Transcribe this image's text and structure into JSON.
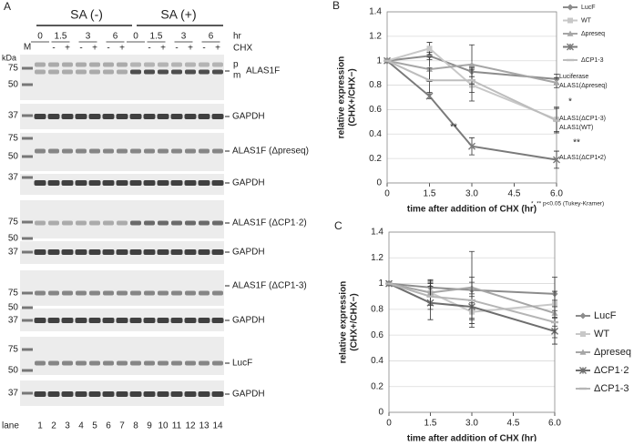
{
  "panel_a": {
    "label": "A",
    "treatments": [
      "SA (-)",
      "SA (+)"
    ],
    "time_label": "hr",
    "chx_label": "CHX",
    "times": [
      "0",
      "1.5",
      "3",
      "6",
      "0",
      "1.5",
      "3",
      "6"
    ],
    "chx": [
      "-",
      "+",
      "-",
      "+",
      "-",
      "+",
      "-",
      "+",
      "-",
      "+",
      "-",
      "+"
    ],
    "marker_lane": "M",
    "kda": "kDa",
    "blots": [
      {
        "sizes": [
          "75",
          "50",
          "37"
        ],
        "target": "ALAS1F",
        "control": "GAPDH",
        "precursor": "p",
        "mature": "m"
      },
      {
        "sizes": [
          "75",
          "50",
          "37"
        ],
        "target": "ALAS1F (Δpreseq)",
        "control": "GAPDH"
      },
      {
        "sizes": [
          "75",
          "50",
          "37"
        ],
        "target": "ALAS1F (ΔCP1·2)",
        "control": "GAPDH"
      },
      {
        "sizes": [
          "75",
          "50",
          "37"
        ],
        "target": "ALAS1F (ΔCP1-3)",
        "control": "GAPDH"
      },
      {
        "sizes": [
          "75",
          "50",
          "37"
        ],
        "target": "LucF",
        "control": "GAPDH"
      }
    ],
    "lane_label": "lane",
    "lanes": [
      "1",
      "2",
      "3",
      "4",
      "5",
      "6",
      "7",
      "8",
      "9",
      "10",
      "11",
      "12",
      "13",
      "14"
    ]
  },
  "chart_data": [
    {
      "type": "line",
      "panel_label": "B",
      "xlabel": "time after addition of CHX (hr)",
      "ylabel": [
        "relative expression",
        "(CHX+/CHX−)"
      ],
      "x": [
        0,
        1.5,
        3,
        6
      ],
      "xlim": [
        0,
        6
      ],
      "xticks": [
        0,
        1.5,
        {
          "value": 3,
          "label": "3.0"
        },
        4.5,
        {
          "value": 6,
          "label": "6.0"
        }
      ],
      "ylim": [
        0,
        1.4
      ],
      "yticks": [
        0,
        0.2,
        0.4,
        0.6,
        0.8,
        1,
        1.2,
        1.4
      ],
      "grid": true,
      "legend": "upper right",
      "series": [
        {
          "name": "LucF",
          "color": "#8c8c8c",
          "marker": "diamond",
          "values": [
            1,
            1.04,
            0.91,
            0.85
          ],
          "errors": [
            0,
            0.03,
            0.04,
            0.04
          ]
        },
        {
          "name": "WT",
          "color": "#c8c8c8",
          "marker": "square",
          "values": [
            1,
            1.1,
            0.8,
            0.52
          ],
          "errors": [
            0,
            0.05,
            0.13,
            0.1
          ]
        },
        {
          "name": "Δpreseq",
          "color": "#a6a6a6",
          "marker": "triangle",
          "values": [
            1,
            0.93,
            0.97,
            0.82
          ],
          "errors": [
            0,
            0.1,
            0.16,
            0.04
          ]
        },
        {
          "name": null,
          "color": "#7a7a7a",
          "marker": "x",
          "values": [
            1,
            0.71,
            0.3,
            0.19
          ],
          "errors": [
            0,
            0.02,
            0.07,
            0.07
          ]
        },
        {
          "name": "ΔCP1-3",
          "color": "#bdbdbd",
          "marker": "dash",
          "values": [
            1,
            0.84,
            0.84,
            0.51
          ],
          "errors": [
            0,
            0.1,
            0.1,
            0.1
          ]
        }
      ],
      "annotations": [
        "Luciferase",
        "ALAS1(Δpreseq)",
        "*",
        "ALAS1(ΔCP1-3)",
        "ALAS1(WT)",
        "**",
        "**",
        "ALAS1(ΔCP1•2)"
      ],
      "footnote": "*, ** p<0.05 (Tukey-Kramer)"
    },
    {
      "type": "line",
      "panel_label": "C",
      "xlabel": "time after addition of CHX (hr)",
      "ylabel": [
        "relative expression",
        "(CHX+/CHX−)"
      ],
      "x": [
        0,
        1.5,
        3,
        6
      ],
      "xlim": [
        0,
        6
      ],
      "xticks": [
        0,
        1.5,
        {
          "value": 3,
          "label": "3.0"
        },
        4.5,
        {
          "value": 6,
          "label": "6.0"
        }
      ],
      "ylim": [
        0,
        1.4
      ],
      "yticks": [
        0,
        0.2,
        0.4,
        0.6,
        0.8,
        1,
        1.2,
        1.4
      ],
      "grid": true,
      "legend": "right",
      "series": [
        {
          "name": "LucF",
          "color": "#8c8c8c",
          "marker": "diamond",
          "values": [
            1,
            0.97,
            0.95,
            0.92
          ],
          "errors": [
            0,
            0.05,
            0.1,
            0.13
          ]
        },
        {
          "name": "WT",
          "color": "#c8c8c8",
          "marker": "square",
          "values": [
            1,
            0.93,
            0.78,
            0.84
          ],
          "errors": [
            0,
            0.08,
            0.12,
            0.1
          ]
        },
        {
          "name": "Δpreseq",
          "color": "#a6a6a6",
          "marker": "triangle",
          "values": [
            1,
            0.93,
            0.97,
            0.77
          ],
          "errors": [
            0,
            0.1,
            0.28,
            0.1
          ]
        },
        {
          "name": "ΔCP1·2",
          "color": "#6e6e6e",
          "marker": "x",
          "values": [
            1,
            0.85,
            0.82,
            0.63
          ],
          "errors": [
            0,
            0.13,
            0.1,
            0.1
          ]
        },
        {
          "name": "ΔCP1-3",
          "color": "#b5b5b5",
          "marker": "dash",
          "values": [
            1,
            0.9,
            0.87,
            0.7
          ],
          "errors": [
            0,
            0.1,
            0.14,
            0.12
          ]
        }
      ]
    }
  ]
}
